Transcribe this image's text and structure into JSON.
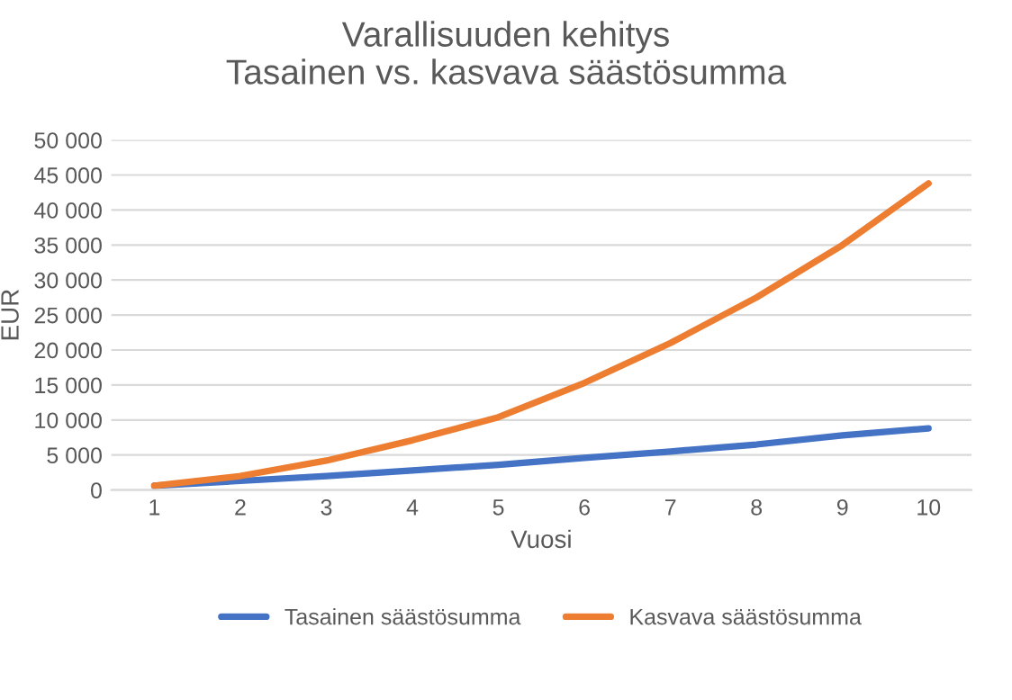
{
  "chart_data": {
    "type": "line",
    "title": "Varallisuuden kehitys\nTasainen vs. kasvava säästösumma",
    "xlabel": "Vuosi",
    "ylabel": "EUR",
    "categories": [
      "1",
      "2",
      "3",
      "4",
      "5",
      "6",
      "7",
      "8",
      "9",
      "10"
    ],
    "series": [
      {
        "name": "Tasainen säästösumma",
        "color": "#4472c4",
        "values": [
          600,
          1300,
          2000,
          2800,
          3600,
          4600,
          5500,
          6500,
          7800,
          8800
        ]
      },
      {
        "name": "Kasvava säästösumma",
        "color": "#ed7d31",
        "values": [
          600,
          2000,
          4200,
          7100,
          10400,
          15300,
          21000,
          27500,
          35000,
          43800
        ]
      }
    ],
    "ylim": [
      0,
      50000
    ],
    "yticks": [
      0,
      {
        "value": 5000,
        "label": "5 000"
      },
      {
        "value": 10000,
        "label": "10 000"
      },
      {
        "value": 15000,
        "label": "15 000"
      },
      {
        "value": 20000,
        "label": "20 000"
      },
      {
        "value": 25000,
        "label": "25 000"
      },
      {
        "value": 30000,
        "label": "30 000"
      },
      {
        "value": 35000,
        "label": "35 000"
      },
      {
        "value": 40000,
        "label": "40 000"
      },
      {
        "value": 45000,
        "label": "45 000"
      },
      {
        "value": 50000,
        "label": "50 000"
      }
    ],
    "grid": "y",
    "legend": "bottom",
    "marker": "none",
    "line_style": "solid"
  }
}
